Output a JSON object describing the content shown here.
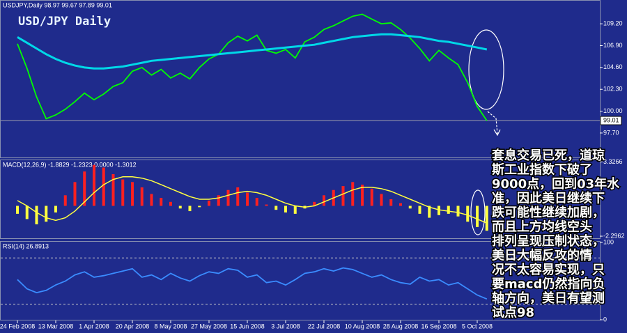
{
  "chart_data": [
    {
      "type": "line",
      "header": "USDJPY,Daily  98.97 99.67 97.89 99.01",
      "title": "USD/JPY Daily",
      "series": [
        {
          "color": "#00ff00",
          "values": [
            107.1,
            104.5,
            101.5,
            99.2,
            99.6,
            100.2,
            101.0,
            101.9,
            101.2,
            101.8,
            102.6,
            103.0,
            104.2,
            104.6,
            103.8,
            104.4,
            103.5,
            104.0,
            103.4,
            104.6,
            105.5,
            106.0,
            107.2,
            107.9,
            107.4,
            108.0,
            106.4,
            106.1,
            106.5,
            105.6,
            107.3,
            107.8,
            108.6,
            109.0,
            109.5,
            110.0,
            110.2,
            109.7,
            109.2,
            109.3,
            108.6,
            107.7,
            106.6,
            105.3,
            106.4,
            105.6,
            104.9,
            103.0,
            100.5,
            99.01
          ]
        },
        {
          "color": "#00d8e8",
          "values": [
            107.8,
            107.2,
            106.6,
            106.0,
            105.5,
            105.1,
            104.8,
            104.6,
            104.5,
            104.5,
            104.6,
            104.7,
            104.9,
            105.1,
            105.3,
            105.4,
            105.5,
            105.6,
            105.7,
            105.8,
            105.9,
            106.0,
            106.1,
            106.2,
            106.3,
            106.4,
            106.5,
            106.6,
            106.7,
            106.8,
            106.9,
            107.0,
            107.2,
            107.4,
            107.6,
            107.8,
            107.9,
            108.0,
            108.1,
            108.1,
            108.0,
            107.9,
            107.8,
            107.6,
            107.4,
            107.3,
            107.1,
            106.9,
            106.7,
            106.5
          ]
        }
      ],
      "ylim": [
        95.2,
        111.56
      ],
      "yticks": [
        {
          "value": 109.2,
          "label": "109.20"
        },
        {
          "value": 106.9,
          "label": "106.90"
        },
        {
          "value": 104.6,
          "label": "104.60"
        },
        {
          "value": 102.3,
          "label": "102.30"
        },
        {
          "value": 100,
          "label": "100.00"
        },
        {
          "value": 97.7,
          "label": "97.70"
        }
      ],
      "current_price": 99.01,
      "annotation": [
        "套息交易已死，道琼",
        "斯工业指数下破了",
        "9000点，回到03年水",
        "准，因此美日继续下",
        "跌可能性继续加剧，",
        "而且上方均线空头",
        "排列呈现压制状态，",
        "美日大幅反攻的情",
        "况不太容易实现，只",
        "要macd仍然指向负",
        "轴方向，美日有望测",
        "试点98"
      ]
    },
    {
      "type": "macd",
      "header": "MACD(12,26,9) -1.8829 -1.2323 0.0000 -1.3012",
      "series": [
        {
          "style": "bar",
          "color": "#ff2020",
          "values": [
            -0.6,
            -1.0,
            -1.4,
            -1.2,
            -0.5,
            0.8,
            1.8,
            2.6,
            3.1,
            2.9,
            2.4,
            2.0,
            1.8,
            1.4,
            0.9,
            0.6,
            0.3,
            -0.2,
            -0.4,
            -0.1,
            0.4,
            0.8,
            1.2,
            1.4,
            1.0,
            0.6,
            0.1,
            -0.3,
            -0.5,
            -0.6,
            -0.2,
            0.3,
            0.8,
            1.2,
            1.5,
            1.8,
            1.6,
            1.3,
            0.9,
            0.5,
            0.2,
            -0.2,
            -0.6,
            -0.9,
            -0.7,
            -0.6,
            -0.8,
            -1.2,
            -1.6,
            -1.8829
          ]
        },
        {
          "style": "line",
          "color": "#ffff40",
          "values": [
            0.4,
            0.0,
            -0.5,
            -0.9,
            -1.1,
            -0.9,
            -0.4,
            0.3,
            1.0,
            1.6,
            2.0,
            2.2,
            2.2,
            2.1,
            1.9,
            1.6,
            1.3,
            1.0,
            0.7,
            0.5,
            0.5,
            0.6,
            0.8,
            1.0,
            1.1,
            1.0,
            0.8,
            0.5,
            0.2,
            0.0,
            -0.1,
            0.0,
            0.3,
            0.6,
            0.9,
            1.2,
            1.4,
            1.4,
            1.3,
            1.1,
            0.8,
            0.5,
            0.2,
            -0.1,
            -0.3,
            -0.4,
            -0.5,
            -0.7,
            -1.0,
            -1.3012
          ]
        }
      ],
      "ylim": [
        -2.4,
        3.4
      ],
      "yticks": [
        3.3266,
        -2.2962
      ]
    },
    {
      "type": "line",
      "header": "RSI(14) 26.8913",
      "categories": [
        "24 Feb 2008",
        null,
        null,
        null,
        "13 Mar 2008",
        null,
        null,
        null,
        "1 Apr 2008",
        null,
        null,
        null,
        "20 Apr 2008",
        null,
        null,
        null,
        "8 May 2008",
        null,
        null,
        null,
        "27 May 2008",
        null,
        null,
        null,
        "15 Jun 2008",
        null,
        null,
        null,
        "3 Jul 2008",
        null,
        null,
        null,
        "22 Jul 2008",
        null,
        null,
        null,
        "10 Aug 2008",
        null,
        null,
        null,
        "28 Aug 2008",
        null,
        null,
        null,
        "16 Sep 2008",
        null,
        null,
        null,
        "5 Oct 2008",
        null
      ],
      "series": [
        {
          "color": "#3a8cff",
          "values": [
            52,
            40,
            35,
            38,
            45,
            50,
            58,
            62,
            55,
            57,
            60,
            63,
            66,
            55,
            58,
            52,
            60,
            54,
            50,
            57,
            62,
            60,
            66,
            64,
            55,
            58,
            48,
            50,
            45,
            52,
            60,
            62,
            66,
            63,
            67,
            65,
            60,
            55,
            58,
            52,
            48,
            46,
            55,
            50,
            52,
            45,
            48,
            40,
            32,
            26.8913
          ]
        }
      ],
      "ylim": [
        0,
        100
      ],
      "yticks": [
        100,
        0
      ],
      "levels": [
        80,
        20
      ]
    }
  ]
}
